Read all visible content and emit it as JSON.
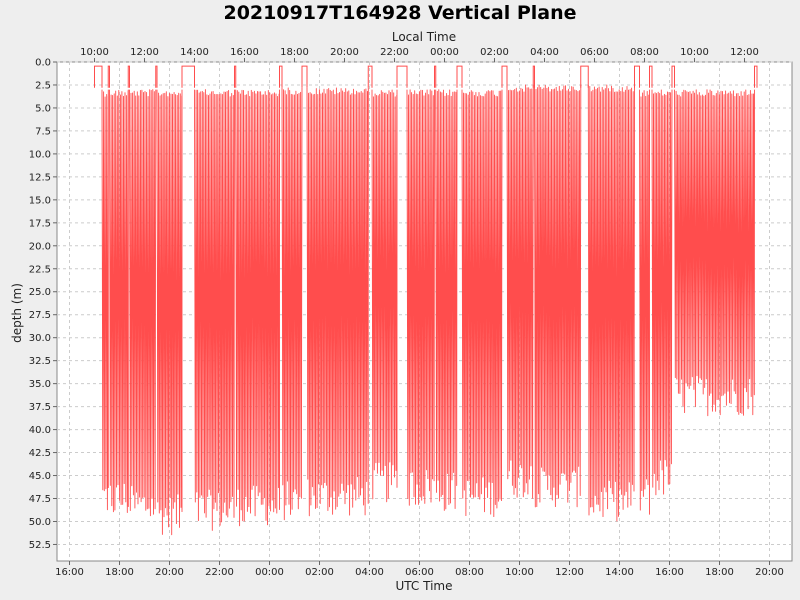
{
  "chart_data": {
    "type": "line",
    "title": "20210917T164928 Vertical Plane",
    "xlabel": "UTC Time",
    "x2label": "Local Time",
    "ylabel": "depth (m)",
    "y_inverted": true,
    "ylim": [
      0,
      54.3
    ],
    "xlim_hours": [
      15.5,
      21
    ],
    "x_ticks": [
      "16:00",
      "18:00",
      "20:00",
      "22:00",
      "00:00",
      "02:00",
      "04:00",
      "06:00",
      "08:00",
      "10:00",
      "12:00",
      "14:00",
      "16:00",
      "18:00",
      "20:00"
    ],
    "x2_ticks": [
      "10:00",
      "12:00",
      "14:00",
      "16:00",
      "18:00",
      "20:00",
      "22:00",
      "00:00",
      "02:00",
      "04:00",
      "06:00",
      "08:00",
      "10:00",
      "12:00"
    ],
    "y_ticks": [
      "0.0",
      "2.5",
      "5.0",
      "7.5",
      "10.0",
      "12.5",
      "15.0",
      "17.5",
      "20.0",
      "22.5",
      "25.0",
      "27.5",
      "30.0",
      "32.5",
      "35.0",
      "37.5",
      "40.0",
      "42.5",
      "45.0",
      "47.5",
      "50.0",
      "52.5"
    ],
    "grid": true,
    "series_color": "#ff4d4d",
    "surface_intervals_hours": [
      [
        17.0,
        17.3
      ],
      [
        17.55,
        17.6
      ],
      [
        18.35,
        18.4
      ],
      [
        19.45,
        19.5
      ],
      [
        20.5,
        21.0
      ],
      [
        22.6,
        22.65
      ],
      [
        24.4,
        24.5
      ],
      [
        25.3,
        25.5
      ],
      [
        27.95,
        28.1
      ],
      [
        29.1,
        29.5
      ],
      [
        30.6,
        30.65
      ],
      [
        31.5,
        31.7
      ],
      [
        33.3,
        33.5
      ],
      [
        34.55,
        34.6
      ],
      [
        36.45,
        36.75
      ],
      [
        38.6,
        38.8
      ],
      [
        39.2,
        39.3
      ],
      [
        40.1,
        40.2
      ],
      [
        43.4,
        43.5
      ]
    ],
    "segments": [
      {
        "start": 17.3,
        "end": 17.55,
        "max_depth": 49.5,
        "min_depth": 3
      },
      {
        "start": 17.6,
        "end": 18.35,
        "max_depth": 49.8,
        "min_depth": 3
      },
      {
        "start": 18.4,
        "end": 19.45,
        "max_depth": 50.5,
        "min_depth": 3
      },
      {
        "start": 19.5,
        "end": 20.5,
        "max_depth": 51.5,
        "min_depth": 3
      },
      {
        "start": 21.0,
        "end": 22.6,
        "max_depth": 51.0,
        "min_depth": 3
      },
      {
        "start": 22.65,
        "end": 24.4,
        "max_depth": 50.5,
        "min_depth": 3
      },
      {
        "start": 24.5,
        "end": 25.3,
        "max_depth": 50.0,
        "min_depth": 2.8
      },
      {
        "start": 25.5,
        "end": 27.95,
        "max_depth": 49.5,
        "min_depth": 2.8
      },
      {
        "start": 28.1,
        "end": 29.1,
        "max_depth": 48.0,
        "min_depth": 3
      },
      {
        "start": 29.5,
        "end": 30.6,
        "max_depth": 48.5,
        "min_depth": 3
      },
      {
        "start": 30.65,
        "end": 31.5,
        "max_depth": 49.0,
        "min_depth": 3
      },
      {
        "start": 31.7,
        "end": 33.3,
        "max_depth": 49.5,
        "min_depth": 3
      },
      {
        "start": 33.5,
        "end": 34.55,
        "max_depth": 47.5,
        "min_depth": 2.5
      },
      {
        "start": 34.6,
        "end": 36.45,
        "max_depth": 48.5,
        "min_depth": 2.5
      },
      {
        "start": 36.75,
        "end": 38.6,
        "max_depth": 50.0,
        "min_depth": 2.5
      },
      {
        "start": 38.8,
        "end": 39.2,
        "max_depth": 49.5,
        "min_depth": 3
      },
      {
        "start": 39.3,
        "end": 40.1,
        "max_depth": 47.5,
        "min_depth": 3
      },
      {
        "start": 40.2,
        "end": 43.4,
        "max_depth": 38.5,
        "min_depth": 3
      }
    ]
  }
}
